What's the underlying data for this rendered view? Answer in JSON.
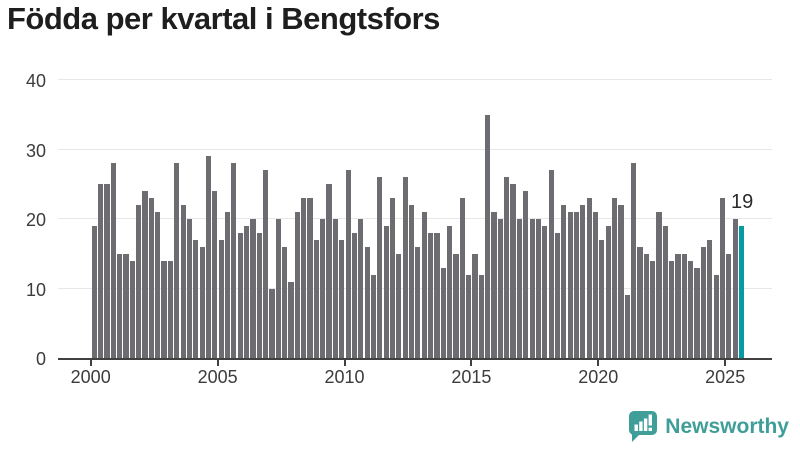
{
  "title": "Födda per kvartal i Bengtsfors",
  "chart_data": {
    "type": "bar",
    "title": "Födda per kvartal i Bengtsfors",
    "x_start_year": 2000,
    "x_start_quarter": 1,
    "x_end_year": 2025,
    "x_end_quarter": 3,
    "x_tick_labels": [
      "2000",
      "2005",
      "2010",
      "2015",
      "2020",
      "2025"
    ],
    "y_tick_labels": [
      "0",
      "10",
      "20",
      "30",
      "40"
    ],
    "ylim": [
      0,
      40
    ],
    "grid": true,
    "legend": "none",
    "bar_color": "#6d6d71",
    "highlight_color": "#069ba4",
    "highlight_last_bar": true,
    "highlight_label": "19",
    "values": [
      19,
      25,
      25,
      28,
      15,
      15,
      14,
      22,
      24,
      23,
      21,
      14,
      14,
      28,
      22,
      20,
      17,
      16,
      29,
      24,
      17,
      21,
      28,
      18,
      19,
      20,
      18,
      27,
      10,
      20,
      16,
      11,
      21,
      23,
      23,
      17,
      20,
      25,
      20,
      17,
      27,
      18,
      20,
      16,
      12,
      26,
      19,
      23,
      15,
      26,
      22,
      16,
      21,
      18,
      18,
      13,
      19,
      15,
      23,
      12,
      15,
      12,
      35,
      21,
      20,
      26,
      25,
      20,
      24,
      20,
      20,
      19,
      27,
      18,
      22,
      21,
      21,
      22,
      23,
      21,
      17,
      19,
      23,
      22,
      9,
      28,
      16,
      15,
      14,
      21,
      19,
      14,
      15,
      15,
      14,
      13,
      16,
      17,
      12,
      23,
      15,
      20,
      19
    ]
  },
  "branding": {
    "logo_text": "Newsworthy",
    "logo_color": "#3f9e98"
  }
}
